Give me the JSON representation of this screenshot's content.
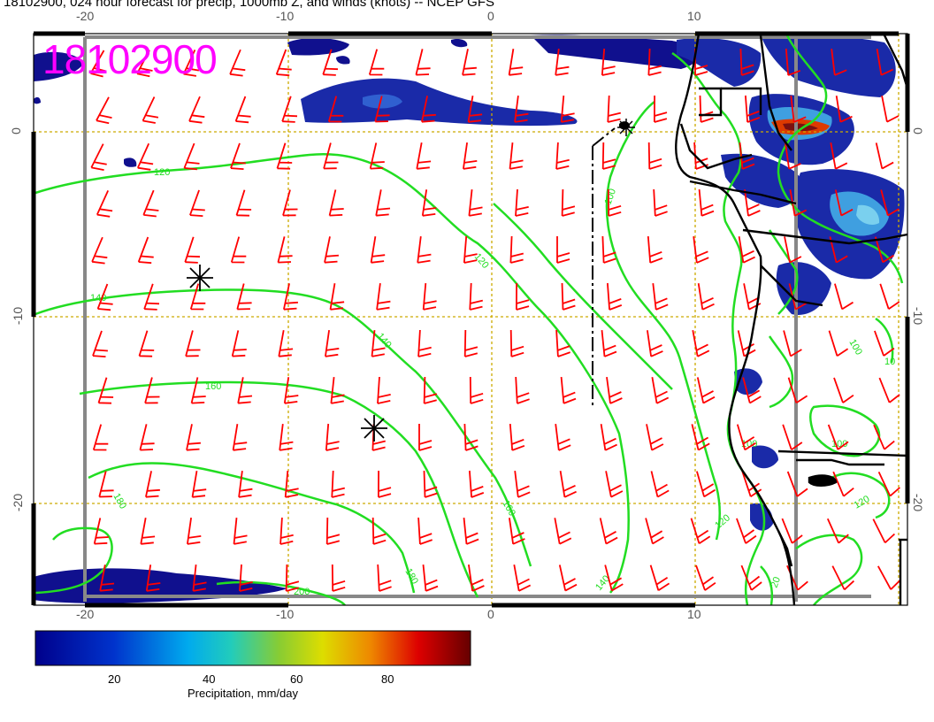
{
  "title": "18102900, 024 hour forecast for precip, 1000mb Z, and winds (knots) -- NCEP GFS",
  "stamp": "18102900",
  "axes": {
    "top_lon": [
      "-20",
      "-10",
      "0",
      "10"
    ],
    "bottom_lon": [
      "-20",
      "-10",
      "0",
      "10"
    ],
    "left_lat": [
      "0",
      "-10",
      "-20"
    ],
    "right_lat": [
      "0",
      "-10",
      "-20"
    ]
  },
  "contour_labels": [
    "120",
    "140",
    "160",
    "180",
    "200",
    "120",
    "140",
    "160",
    "180",
    "120",
    "140",
    "100",
    "100",
    "100",
    "120",
    "20",
    "10",
    "100"
  ],
  "colorbar": {
    "title": "Precipitation, mm/day",
    "ticks": [
      "20",
      "40",
      "60",
      "80"
    ],
    "colors": [
      "#00008b",
      "#0033cc",
      "#00aaee",
      "#22ccbb",
      "#88cc33",
      "#dddd00",
      "#ee8800",
      "#dd0000",
      "#660000"
    ]
  },
  "colors": {
    "stamp": "#ff00ff",
    "contour": "#22dd22",
    "wind": "#ff0000",
    "grid": "#ccaa00",
    "coast": "#000000",
    "frame": "#888888"
  },
  "icons": [
    "low-center-marker",
    "high-center-marker"
  ]
}
